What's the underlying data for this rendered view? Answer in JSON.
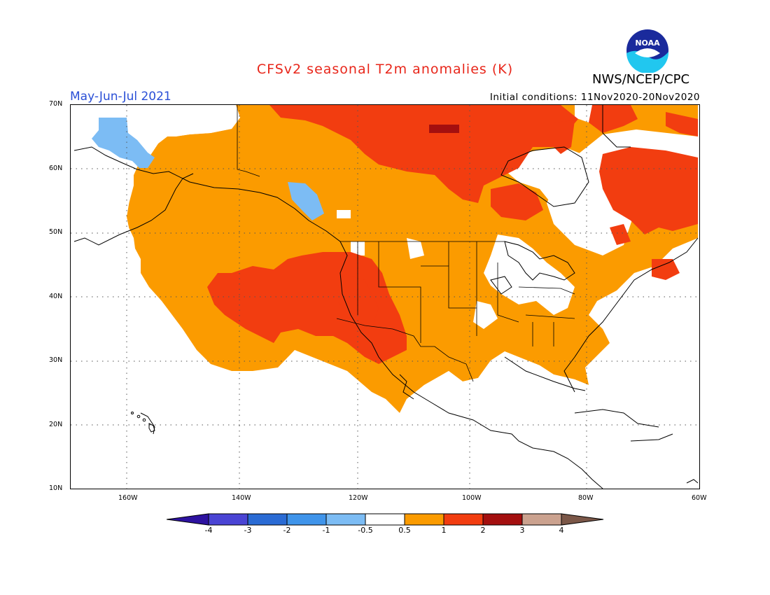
{
  "title": "CFSv2 seasonal T2m anomalies (K)",
  "season": "May-Jun-Jul 2021",
  "initial_conditions": "Initial conditions: 11Nov2020-20Nov2020",
  "agency": "NWS/NCEP/CPC",
  "logo_text": "NOAA",
  "lat_labels": [
    "70N",
    "60N",
    "50N",
    "40N",
    "30N",
    "20N",
    "10N"
  ],
  "lon_labels": [
    "160W",
    "140W",
    "120W",
    "100W",
    "80W",
    "60W"
  ],
  "colorbar": {
    "labels": [
      "-4",
      "-3",
      "-2",
      "-1",
      "-0.5",
      "0.5",
      "1",
      "2",
      "3",
      "4"
    ],
    "colors": [
      "#2d12a0",
      "#4a44d4",
      "#2a6bd4",
      "#3f94ea",
      "#7cbcf4",
      "#ffffff",
      "#fb9b00",
      "#f23d10",
      "#a40f0f",
      "#cba28f",
      "#7b5748"
    ]
  },
  "map": {
    "extent": {
      "lon": [
        -172,
        -60
      ],
      "lat": [
        10,
        70
      ]
    },
    "colors": {
      "plus_0_5_to_1": "#fb9b00",
      "plus_1_to_2": "#f23d10",
      "plus_2_to_3": "#a40f0f",
      "minus_0_5_to_1": "#7cbcf4"
    }
  }
}
